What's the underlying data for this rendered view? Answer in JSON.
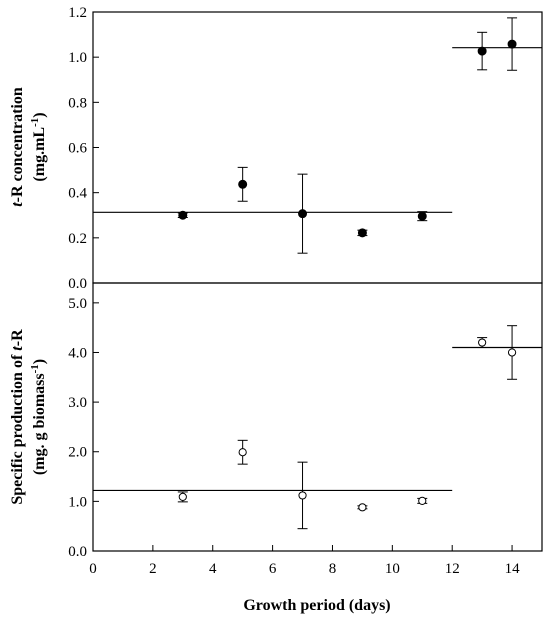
{
  "chart_data": [
    {
      "type": "scatter",
      "panel": "top",
      "ylabel_line1_italic": "t",
      "ylabel_line1_rest": "-R concentration",
      "ylabel_line2": "(mg.mL",
      "ylabel_line2_sup": "-1",
      "ylabel_line2_end": ")",
      "xlim": [
        0,
        15
      ],
      "ylim": [
        0,
        1.2
      ],
      "y_ticks": [
        "0.0",
        "0.2",
        "0.4",
        "0.6",
        "0.8",
        "1.0",
        "1.2"
      ],
      "y_tick_values": [
        0,
        0.2,
        0.4,
        0.6,
        0.8,
        1.0,
        1.2
      ],
      "marker": "filled-circle",
      "points": [
        {
          "x": 3,
          "y": 0.3,
          "err": 0.01
        },
        {
          "x": 5,
          "y": 0.437,
          "err": 0.075
        },
        {
          "x": 7,
          "y": 0.307,
          "err": 0.175
        },
        {
          "x": 9,
          "y": 0.222,
          "err": 0.012
        },
        {
          "x": 11,
          "y": 0.296,
          "err": 0.02
        },
        {
          "x": 13,
          "y": 1.027,
          "err": 0.083
        },
        {
          "x": 14,
          "y": 1.058,
          "err": 0.116
        }
      ],
      "mean_lines": [
        {
          "x_start": 0,
          "x_end": 12,
          "y": 0.313
        },
        {
          "x_start": 12,
          "x_end": 15,
          "y": 1.042
        }
      ]
    },
    {
      "type": "scatter",
      "panel": "bottom",
      "ylabel_line1_plain": "Specific production of ",
      "ylabel_line1_italic": "t",
      "ylabel_line1_end": "-R",
      "ylabel_line2": "(mg. g biomass",
      "ylabel_line2_sup": "-1",
      "ylabel_line2_end": ")",
      "xlabel": "Growth period (days)",
      "xlim": [
        0,
        15
      ],
      "ylim": [
        0,
        5.4
      ],
      "x_ticks": [
        "0",
        "2",
        "4",
        "6",
        "8",
        "10",
        "12",
        "14"
      ],
      "x_tick_values": [
        0,
        2,
        4,
        6,
        8,
        10,
        12,
        14
      ],
      "y_ticks": [
        "0.0",
        "1.0",
        "2.0",
        "3.0",
        "4.0",
        "5.0"
      ],
      "y_tick_values": [
        0,
        1,
        2,
        3,
        4,
        5
      ],
      "marker": "open-circle",
      "points": [
        {
          "x": 3,
          "y": 1.09,
          "err": 0.1
        },
        {
          "x": 5,
          "y": 1.99,
          "err": 0.24
        },
        {
          "x": 7,
          "y": 1.12,
          "err": 0.67
        },
        {
          "x": 9,
          "y": 0.88,
          "err": 0.03
        },
        {
          "x": 11,
          "y": 1.01,
          "err": 0.05
        },
        {
          "x": 13,
          "y": 4.2,
          "err": 0.1
        },
        {
          "x": 14,
          "y": 4.0,
          "err": 0.54
        }
      ],
      "mean_lines": [
        {
          "x_start": 0,
          "x_end": 12,
          "y": 1.22
        },
        {
          "x_start": 12,
          "x_end": 15,
          "y": 4.1
        }
      ]
    }
  ]
}
